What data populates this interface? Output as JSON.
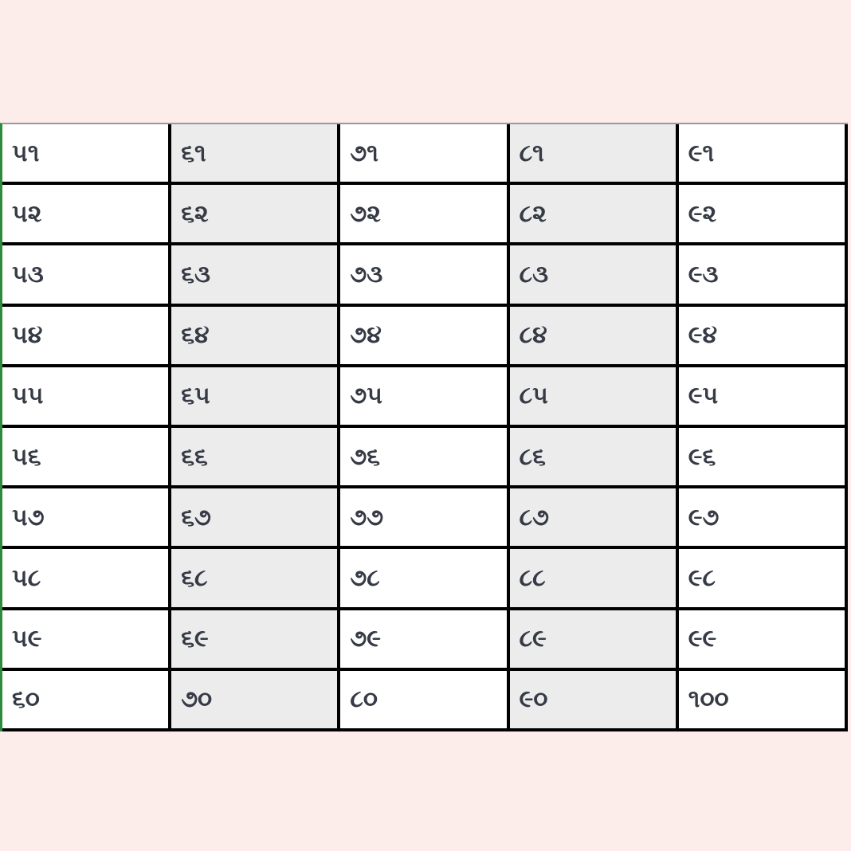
{
  "table": {
    "rows": [
      [
        "૫૧",
        "૬૧",
        "૭૧",
        "૮૧",
        "૯૧"
      ],
      [
        "૫૨",
        "૬૨",
        "૭૨",
        "૮૨",
        "૯૨"
      ],
      [
        "૫૩",
        "૬૩",
        "૭૩",
        "૮૩",
        "૯૩"
      ],
      [
        "૫૪",
        "૬૪",
        "૭૪",
        "૮૪",
        "૯૪"
      ],
      [
        "૫૫",
        "૬૫",
        "૭૫",
        "૮૫",
        "૯૫"
      ],
      [
        "૫૬",
        "૬૬",
        "૭૬",
        "૮૬",
        "૯૬"
      ],
      [
        "૫૭",
        "૬૭",
        "૭૭",
        "૮૭",
        "૯૭"
      ],
      [
        "૫૮",
        "૬૮",
        "૭૮",
        "૮૮",
        "૯૮"
      ],
      [
        "૫૯",
        "૬૯",
        "૭૯",
        "૮૯",
        "૯૯"
      ],
      [
        "૬૦",
        "૭૦",
        "૮૦",
        "૯૦",
        "૧૦૦"
      ]
    ],
    "colors": {
      "background": "#fcecea",
      "cell": "#ffffff",
      "shaded_cell": "#ececec",
      "border": "#000000",
      "text": "#353a45"
    }
  }
}
